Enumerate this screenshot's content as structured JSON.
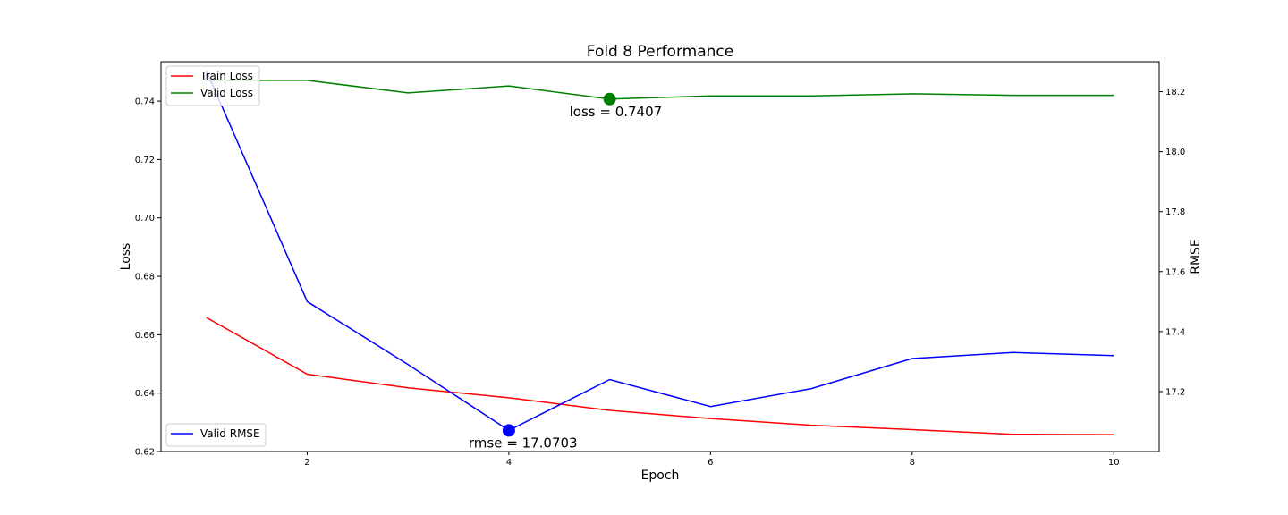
{
  "chart_data": {
    "type": "line",
    "title": "Fold 8 Performance",
    "xlabel": "Epoch",
    "ylabel": "Loss",
    "ylabel_right": "RMSE",
    "xlim": [
      0.55,
      10.45
    ],
    "ylim": [
      0.62,
      0.7535
    ],
    "ylim_right": [
      17.0,
      18.3
    ],
    "x": [
      1,
      2,
      3,
      4,
      5,
      6,
      7,
      8,
      9,
      10
    ],
    "x_ticks": [
      2,
      4,
      6,
      8,
      10
    ],
    "y_ticks": [
      0.62,
      0.64,
      0.66,
      0.68,
      0.7,
      0.72,
      0.74
    ],
    "y_ticks_right": [
      17.2,
      17.4,
      17.6,
      17.8,
      18.0,
      18.2
    ],
    "grid": false,
    "series": [
      {
        "name": "Train Loss",
        "axis": "left",
        "color": "#ff0000",
        "values": [
          0.6659,
          0.6465,
          0.6418,
          0.6384,
          0.6341,
          0.6313,
          0.629,
          0.6275,
          0.6259,
          0.6258
        ]
      },
      {
        "name": "Valid Loss",
        "axis": "left",
        "color": "#008000",
        "values": [
          0.7471,
          0.7471,
          0.7428,
          0.7452,
          0.7407,
          0.7418,
          0.7418,
          0.7425,
          0.742,
          0.742
        ]
      },
      {
        "name": "Valid RMSE",
        "axis": "right",
        "color": "#0000ff",
        "values": [
          18.27,
          17.5,
          17.29,
          17.0703,
          17.24,
          17.15,
          17.21,
          17.31,
          17.33,
          17.32
        ]
      }
    ],
    "legends": [
      {
        "placement": "upper-left",
        "entries": [
          "Train Loss",
          "Valid Loss"
        ]
      },
      {
        "placement": "lower-left",
        "entries": [
          "Valid RMSE"
        ]
      }
    ],
    "annotations": [
      {
        "series": "Valid Loss",
        "x": 5,
        "y": 0.7407,
        "text": "loss = 0.7407",
        "color": "#008000"
      },
      {
        "series": "Valid RMSE",
        "x": 4,
        "y": 17.0703,
        "text": "rmse = 17.0703",
        "color": "#0000ff"
      }
    ]
  }
}
